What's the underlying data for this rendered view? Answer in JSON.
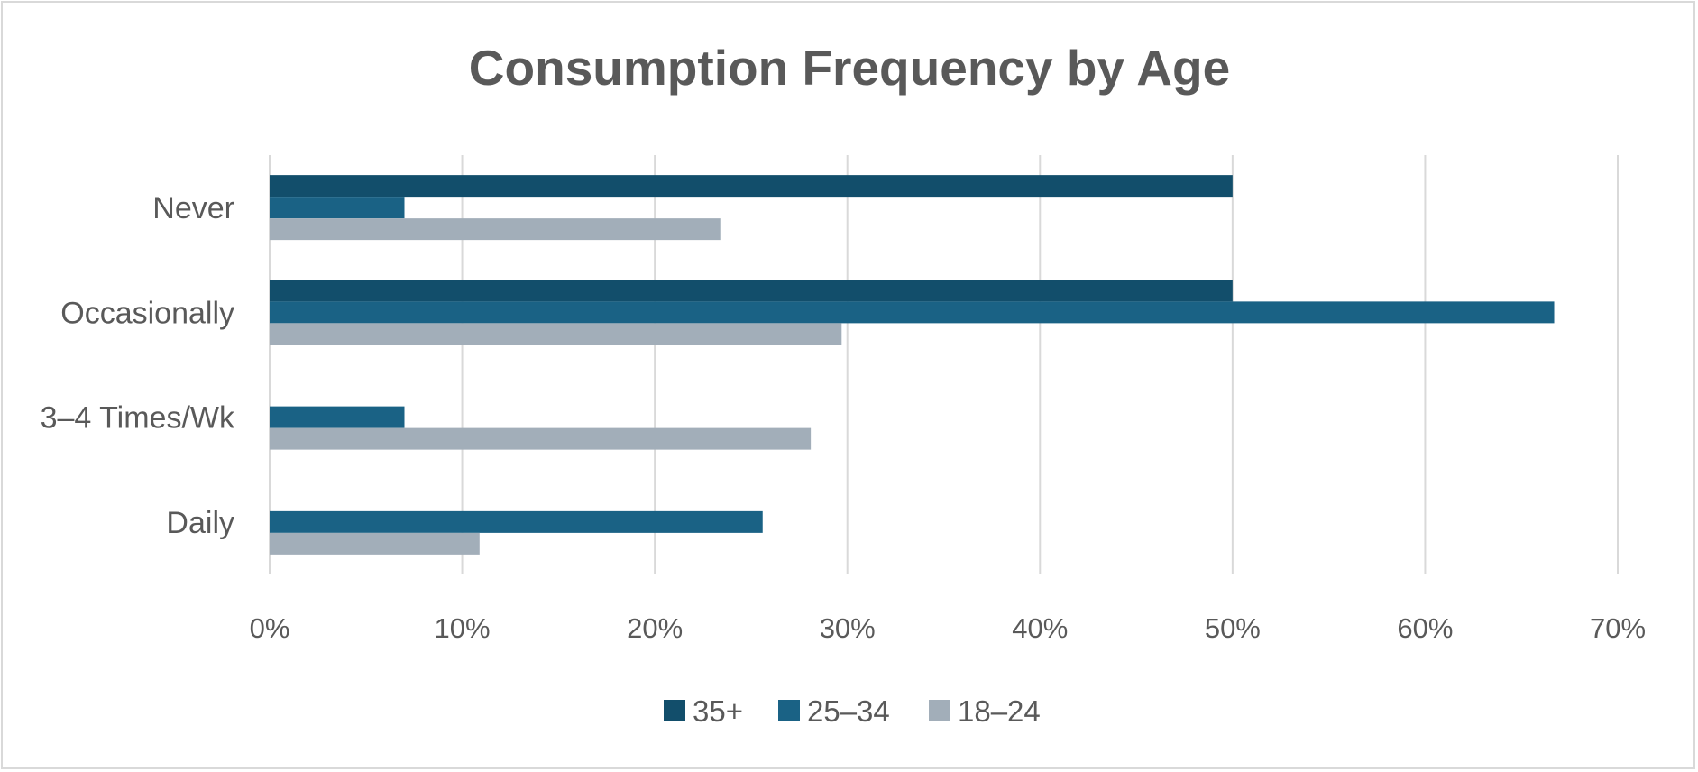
{
  "chart_data": {
    "type": "bar",
    "orientation": "horizontal",
    "title": "Consumption Frequency by Age",
    "xlabel": "",
    "ylabel": "",
    "categories": [
      "Never",
      "Occasionally",
      "3–4 Times/Wk",
      "Daily"
    ],
    "series": [
      {
        "name": "35+",
        "color": "#124e6b",
        "values": [
          50,
          50,
          0,
          0
        ]
      },
      {
        "name": "25–34",
        "color": "#1a6285",
        "values": [
          7,
          66.7,
          7,
          25.6
        ]
      },
      {
        "name": "18–24",
        "color": "#a2aeb9",
        "values": [
          23.4,
          29.7,
          28.1,
          10.9
        ]
      }
    ],
    "xlim": [
      0,
      70
    ],
    "x_ticks": [
      0,
      10,
      20,
      30,
      40,
      50,
      60,
      70
    ],
    "x_tick_labels": [
      "0%",
      "10%",
      "20%",
      "30%",
      "40%",
      "50%",
      "60%",
      "70%"
    ],
    "grid": true,
    "legend_position": "bottom"
  }
}
